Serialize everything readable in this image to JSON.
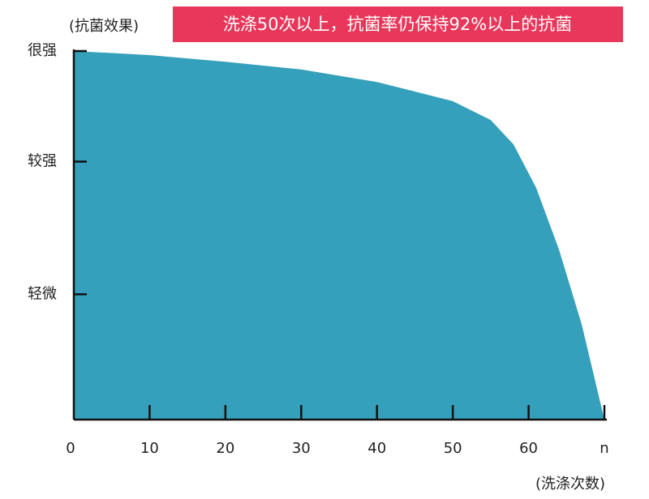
{
  "chart_data": {
    "type": "area",
    "title": "洗涤50次以上，抗菌率仍保持92%以上的抗菌",
    "y_label": "(抗菌效果)",
    "x_label": "(洗涤次数)",
    "x": [
      0,
      10,
      20,
      30,
      40,
      50,
      55,
      58,
      61,
      64,
      67,
      70
    ],
    "values": [
      100,
      98.9,
      97.1,
      95,
      91.6,
      86.4,
      81.3,
      74.7,
      62.9,
      46.2,
      25.9,
      0
    ],
    "color": "#35a0bb",
    "banner_color": "#e8375a",
    "xlim": [
      0,
      70
    ],
    "xticks": [
      0,
      10,
      20,
      30,
      40,
      50,
      60,
      {
        "value": 70,
        "label": "n"
      }
    ],
    "ylim": [
      0,
      100
    ],
    "yticks": [
      {
        "value": 100,
        "label": "很强"
      },
      {
        "value": 70,
        "label": "较强"
      },
      {
        "value": 34,
        "label": "轻微"
      }
    ]
  }
}
